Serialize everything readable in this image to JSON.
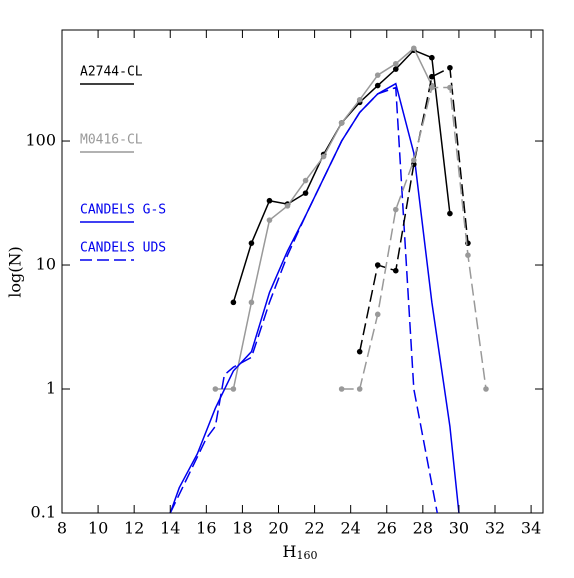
{
  "chart_data": {
    "type": "line",
    "xlabel": "H",
    "xlabel_subscript": "160",
    "ylabel": "log(N)",
    "xlim": [
      8,
      34.66
    ],
    "xticks": [
      8,
      10,
      12,
      14,
      16,
      18,
      20,
      22,
      24,
      26,
      28,
      30,
      32,
      34
    ],
    "ylim": [
      0.1,
      786
    ],
    "yticks": [
      0.1,
      1,
      10,
      100
    ],
    "log_y": true,
    "legend": "upper left",
    "series": [
      {
        "name": "A2744-CL",
        "color": "#000000",
        "dash": false,
        "marker": true,
        "x": [
          17.5,
          18.5,
          19.5,
          20.5,
          21.5,
          22.5,
          23.5,
          24.5,
          25.5,
          26.5,
          27.5,
          28.5,
          29.5
        ],
        "values": [
          5,
          15,
          33,
          31,
          38,
          78,
          140,
          205,
          280,
          380,
          540,
          470,
          26
        ]
      },
      {
        "name": "M0416-CL",
        "color": "#999999",
        "dash": false,
        "marker": true,
        "x": [
          16.5,
          17.5,
          18.5,
          19.5,
          20.5,
          21.5,
          22.5,
          23.5,
          24.5,
          25.5,
          26.5,
          27.5,
          28.5
        ],
        "values": [
          1,
          1,
          5,
          23,
          30,
          48,
          75,
          140,
          215,
          340,
          420,
          560,
          280
        ]
      },
      {
        "name": "CANDELS G-S",
        "color": "#0000ee",
        "dash": false,
        "marker": false,
        "x": [
          14,
          14.5,
          15.5,
          16.5,
          17.5,
          18.5,
          19.5,
          20.5,
          21.5,
          22.5,
          23.5,
          24.5,
          25.5,
          26.5,
          27.5,
          28.5,
          29.5,
          30
        ],
        "values": [
          0.1,
          0.16,
          0.3,
          0.7,
          1.4,
          2,
          6,
          13,
          25,
          50,
          100,
          170,
          240,
          290,
          80,
          5,
          0.5,
          0.1
        ]
      },
      {
        "name": "CANDELS UDS",
        "color": "#0000ee",
        "dash": true,
        "marker": false,
        "x": [
          14,
          15,
          16,
          16.5,
          17,
          17.5,
          18.5,
          19.5,
          20.5,
          21.5,
          22.5,
          23.5,
          24.5,
          25.5,
          26.5,
          27.5,
          28.8
        ],
        "values": [
          0.1,
          0.2,
          0.4,
          0.5,
          1.3,
          1.5,
          1.8,
          5,
          12,
          25,
          50,
          100,
          170,
          240,
          270,
          1,
          0.1
        ]
      },
      {
        "color": "#000000",
        "dash": true,
        "marker": true,
        "x": [
          24.5,
          25.5,
          26.5,
          27.5,
          28.5,
          29.5,
          30.5
        ],
        "values": [
          2,
          10,
          9,
          65,
          330,
          390,
          15
        ]
      },
      {
        "color": "#999999",
        "dash": true,
        "marker": true,
        "x": [
          23.5,
          24.5,
          25.5,
          26.5,
          27.5,
          28.5,
          29.5,
          30.5,
          31.5
        ],
        "values": [
          1,
          1,
          4,
          28,
          70,
          270,
          270,
          12,
          1
        ]
      }
    ]
  }
}
